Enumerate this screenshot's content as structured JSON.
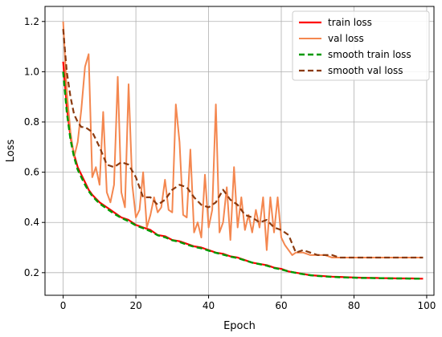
{
  "chart_data": {
    "type": "line",
    "title": "",
    "xlabel": "Epoch",
    "ylabel": "Loss",
    "xlim": [
      -5,
      102
    ],
    "ylim": [
      0.11,
      1.26
    ],
    "x_ticks": [
      0,
      20,
      40,
      60,
      80,
      100
    ],
    "y_ticks": [
      0.2,
      0.4,
      0.6,
      0.8,
      1.0,
      1.2
    ],
    "x_tick_labels": [
      "0",
      "20",
      "40",
      "60",
      "80",
      "100"
    ],
    "y_tick_labels": [
      "0.2",
      "0.4",
      "0.6",
      "0.8",
      "1.0",
      "1.2"
    ],
    "grid": true,
    "legend_position": "top-right",
    "series": [
      {
        "name": "train loss",
        "color": "#ff0000",
        "style": "solid",
        "x": [
          0,
          1,
          2,
          3,
          4,
          5,
          6,
          7,
          8,
          9,
          10,
          12,
          14,
          16,
          18,
          20,
          22,
          24,
          26,
          28,
          30,
          32,
          34,
          36,
          38,
          40,
          42,
          44,
          46,
          48,
          50,
          52,
          54,
          56,
          58,
          60,
          62,
          64,
          66,
          68,
          70,
          72,
          74,
          76,
          78,
          80,
          82,
          84,
          86,
          88,
          90,
          92,
          94,
          96,
          98,
          99
        ],
        "y": [
          1.04,
          0.86,
          0.74,
          0.67,
          0.62,
          0.59,
          0.56,
          0.53,
          0.51,
          0.495,
          0.48,
          0.46,
          0.44,
          0.42,
          0.41,
          0.39,
          0.38,
          0.37,
          0.35,
          0.345,
          0.33,
          0.325,
          0.315,
          0.305,
          0.3,
          0.29,
          0.28,
          0.275,
          0.265,
          0.26,
          0.25,
          0.24,
          0.235,
          0.23,
          0.22,
          0.215,
          0.205,
          0.2,
          0.195,
          0.19,
          0.188,
          0.186,
          0.184,
          0.183,
          0.182,
          0.181,
          0.18,
          0.179,
          0.179,
          0.178,
          0.178,
          0.177,
          0.177,
          0.177,
          0.176,
          0.176
        ]
      },
      {
        "name": "val loss",
        "color": "#f4874f",
        "style": "solid",
        "x": [
          0,
          1,
          2,
          3,
          4,
          5,
          6,
          7,
          8,
          9,
          10,
          11,
          12,
          13,
          14,
          15,
          16,
          17,
          18,
          19,
          20,
          21,
          22,
          23,
          24,
          25,
          26,
          27,
          28,
          29,
          30,
          31,
          32,
          33,
          34,
          35,
          36,
          37,
          38,
          39,
          40,
          41,
          42,
          43,
          44,
          45,
          46,
          47,
          48,
          49,
          50,
          51,
          52,
          53,
          54,
          55,
          56,
          57,
          58,
          59,
          60,
          61,
          62,
          63,
          64,
          65,
          66,
          68,
          70,
          72,
          74,
          76,
          78,
          80,
          82,
          84,
          86,
          88,
          90,
          92,
          94,
          96,
          98,
          99
        ],
        "y": [
          1.2,
          0.92,
          0.76,
          0.66,
          0.72,
          0.85,
          1.02,
          1.07,
          0.58,
          0.62,
          0.55,
          0.84,
          0.52,
          0.48,
          0.55,
          0.98,
          0.52,
          0.46,
          0.95,
          0.55,
          0.42,
          0.45,
          0.6,
          0.38,
          0.43,
          0.5,
          0.44,
          0.46,
          0.57,
          0.45,
          0.44,
          0.87,
          0.72,
          0.43,
          0.42,
          0.69,
          0.36,
          0.4,
          0.34,
          0.59,
          0.38,
          0.45,
          0.87,
          0.36,
          0.4,
          0.54,
          0.33,
          0.62,
          0.38,
          0.5,
          0.37,
          0.43,
          0.36,
          0.45,
          0.38,
          0.5,
          0.29,
          0.5,
          0.36,
          0.5,
          0.34,
          0.31,
          0.29,
          0.27,
          0.28,
          0.28,
          0.28,
          0.27,
          0.27,
          0.27,
          0.26,
          0.26,
          0.26,
          0.26,
          0.26,
          0.26,
          0.26,
          0.26,
          0.26,
          0.26,
          0.26,
          0.26,
          0.26,
          0.26
        ]
      },
      {
        "name": "smooth train loss",
        "color": "#009900",
        "style": "dashed",
        "x": [
          0,
          1,
          2,
          3,
          4,
          5,
          6,
          7,
          8,
          9,
          10,
          12,
          14,
          16,
          18,
          20,
          22,
          24,
          26,
          28,
          30,
          32,
          34,
          36,
          38,
          40,
          42,
          44,
          46,
          48,
          50,
          52,
          54,
          56,
          58,
          60,
          62,
          64,
          66,
          68,
          70,
          72,
          74,
          76,
          78,
          80,
          82,
          84,
          86,
          88,
          90,
          92,
          94,
          96,
          98,
          99
        ],
        "y": [
          1.0,
          0.84,
          0.73,
          0.66,
          0.61,
          0.58,
          0.55,
          0.525,
          0.505,
          0.49,
          0.475,
          0.455,
          0.435,
          0.418,
          0.405,
          0.388,
          0.377,
          0.365,
          0.349,
          0.341,
          0.329,
          0.322,
          0.312,
          0.303,
          0.297,
          0.288,
          0.279,
          0.272,
          0.264,
          0.258,
          0.249,
          0.24,
          0.234,
          0.228,
          0.219,
          0.213,
          0.205,
          0.199,
          0.194,
          0.19,
          0.187,
          0.185,
          0.183,
          0.182,
          0.181,
          0.18,
          0.179,
          0.179,
          0.178,
          0.178,
          0.177,
          0.177,
          0.177,
          0.176,
          0.176,
          0.176
        ]
      },
      {
        "name": "smooth val loss",
        "color": "#8b3a0f",
        "style": "dashed",
        "x": [
          0,
          1,
          2,
          3,
          4,
          5,
          6,
          8,
          10,
          12,
          14,
          16,
          18,
          20,
          22,
          24,
          26,
          28,
          30,
          32,
          34,
          36,
          38,
          40,
          42,
          44,
          46,
          48,
          50,
          52,
          54,
          56,
          58,
          60,
          62,
          64,
          66,
          68,
          70,
          72,
          74,
          76,
          78,
          80,
          82,
          84,
          86,
          88,
          90,
          92,
          94,
          96,
          98,
          99
        ],
        "y": [
          1.17,
          1.0,
          0.9,
          0.83,
          0.8,
          0.78,
          0.78,
          0.76,
          0.7,
          0.63,
          0.62,
          0.64,
          0.63,
          0.58,
          0.5,
          0.5,
          0.47,
          0.49,
          0.53,
          0.55,
          0.54,
          0.5,
          0.47,
          0.46,
          0.48,
          0.53,
          0.49,
          0.47,
          0.43,
          0.42,
          0.4,
          0.41,
          0.38,
          0.37,
          0.35,
          0.28,
          0.29,
          0.28,
          0.27,
          0.27,
          0.27,
          0.26,
          0.26,
          0.26,
          0.26,
          0.26,
          0.26,
          0.26,
          0.26,
          0.26,
          0.26,
          0.26,
          0.26,
          0.26
        ]
      }
    ]
  }
}
